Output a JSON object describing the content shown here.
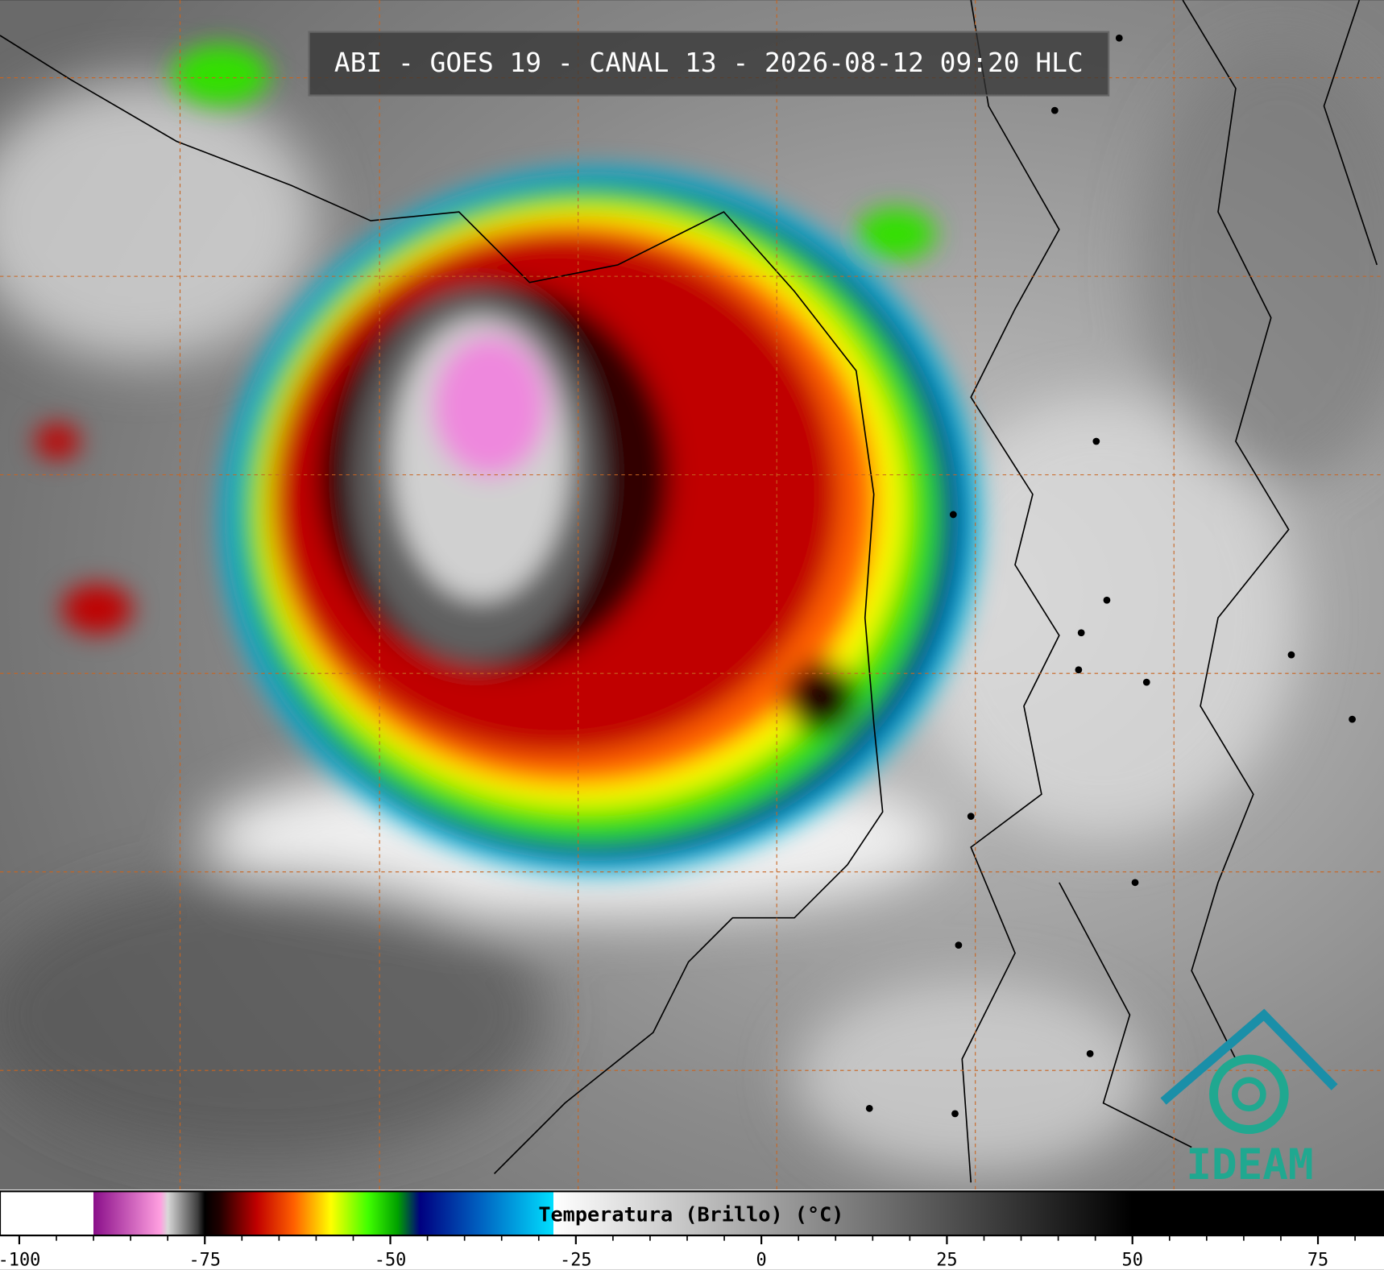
{
  "title": "ABI - GOES 19 - CANAL 13 - 2026-08-12 09:20 HLC",
  "logo": "IDEAM",
  "colorbar": {
    "label": "Temperatura (Brillo) (°C)",
    "range": [
      -102.6,
      83.9
    ],
    "ticks": [
      -100,
      -75,
      -50,
      -25,
      0,
      25,
      50,
      75
    ],
    "minor_ticks": [
      -95,
      -90,
      -85,
      -80,
      -70,
      -65,
      -60,
      -55,
      -45,
      -40,
      -35,
      -30,
      -20,
      -15,
      -10,
      -5,
      5,
      10,
      15,
      20,
      30,
      35,
      40,
      45,
      55,
      60,
      65,
      70,
      80
    ],
    "colormap": [
      {
        "value": -90,
        "color": "#ffffff"
      },
      {
        "value": -90,
        "color": "#8a0f8a"
      },
      {
        "value": -81,
        "color": "#ff9fe0"
      },
      {
        "value": -80,
        "color": "#d8d8d8"
      },
      {
        "value": -76,
        "color": "#404040"
      },
      {
        "value": -75,
        "color": "#000000"
      },
      {
        "value": -73,
        "color": "#200000"
      },
      {
        "value": -68,
        "color": "#c00000"
      },
      {
        "value": -63,
        "color": "#ff6000"
      },
      {
        "value": -58,
        "color": "#ffff00"
      },
      {
        "value": -53,
        "color": "#40ff00"
      },
      {
        "value": -49,
        "color": "#00a000"
      },
      {
        "value": -46,
        "color": "#000080"
      },
      {
        "value": -38,
        "color": "#0060c0"
      },
      {
        "value": -28,
        "color": "#00e0ff"
      },
      {
        "value": -28,
        "color": "#ffffff"
      },
      {
        "value": 50,
        "color": "#000000"
      }
    ]
  }
}
